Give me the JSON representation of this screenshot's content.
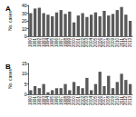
{
  "chart_data": [
    {
      "type": "bar",
      "title": "A",
      "ylabel": "No. cases",
      "categories": [
        "1990",
        "1991",
        "1992",
        "1993",
        "1994",
        "1995",
        "1996",
        "1997",
        "1998",
        "1999",
        "2000",
        "2001",
        "2002",
        "2003",
        "2004",
        "2005",
        "2006",
        "2007",
        "2008",
        "2009",
        "2010",
        "2011",
        "2012",
        "2013"
      ],
      "values": [
        30,
        36,
        37,
        30,
        28,
        26,
        31,
        34,
        29,
        32,
        18,
        27,
        30,
        25,
        28,
        31,
        26,
        33,
        27,
        29,
        34,
        38,
        28,
        20
      ],
      "color": "#595959",
      "ylim": [
        0,
        40
      ],
      "yticks": [
        0,
        10,
        20,
        30,
        40
      ],
      "grid": false
    },
    {
      "type": "bar",
      "title": "B",
      "ylabel": "No. cases",
      "categories": [
        "1990",
        "1991",
        "1992",
        "1993",
        "1994",
        "1995",
        "1996",
        "1997",
        "1998",
        "1999",
        "2000",
        "2001",
        "2002",
        "2003",
        "2004",
        "2005",
        "2006",
        "2007",
        "2008",
        "2009",
        "2010",
        "2011",
        "2012",
        "2013"
      ],
      "values": [
        2,
        4,
        3,
        5,
        1,
        2,
        3,
        3,
        5,
        2,
        6,
        4,
        3,
        8,
        2,
        5,
        11,
        4,
        9,
        3,
        6,
        10,
        7,
        5
      ],
      "color": "#595959",
      "ylim": [
        0,
        15
      ],
      "yticks": [
        0,
        5,
        10,
        15
      ],
      "grid": false
    }
  ]
}
